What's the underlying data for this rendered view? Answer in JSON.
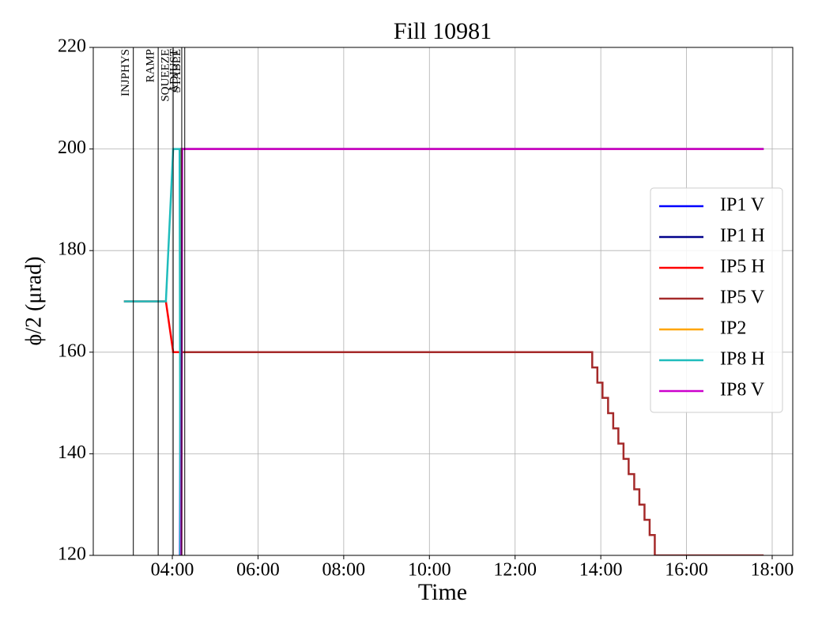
{
  "chart_data": {
    "type": "line",
    "title": "Fill 10981",
    "xlabel": "Time",
    "ylabel": "ϕ/2 (μrad)",
    "xlim": [
      2.155,
      18.48
    ],
    "xticks": [
      {
        "value": 4,
        "label": "04:00"
      },
      {
        "value": 6,
        "label": "06:00"
      },
      {
        "value": 8,
        "label": "08:00"
      },
      {
        "value": 10,
        "label": "10:00"
      },
      {
        "value": 12,
        "label": "12:00"
      },
      {
        "value": 14,
        "label": "14:00"
      },
      {
        "value": 16,
        "label": "16:00"
      },
      {
        "value": 18,
        "label": "18:00"
      }
    ],
    "ylim": [
      120,
      220
    ],
    "yticks": [
      120,
      140,
      160,
      180,
      200,
      220
    ],
    "grid": true,
    "legend": "center right",
    "annotations": [
      {
        "x": 3.09,
        "label": "INJPHYS"
      },
      {
        "x": 3.67,
        "label": "RAMP"
      },
      {
        "x": 4.02,
        "label": "SQUEEZE"
      },
      {
        "x": 4.22,
        "label": "ADJUST"
      },
      {
        "x": 4.29,
        "label": "STABLE"
      }
    ],
    "series": [
      {
        "name": "IP1 V",
        "color": "#0000ff",
        "x": [
          4.18,
          4.2,
          17.8
        ],
        "values": [
          120,
          200,
          200
        ]
      },
      {
        "name": "IP1 H",
        "color": "#00008b",
        "x": [
          4.19,
          4.21,
          17.8
        ],
        "values": [
          120,
          200,
          200
        ]
      },
      {
        "name": "IP5 H",
        "color": "#ff0000",
        "x": [
          2.87,
          3.85,
          4.02,
          4.2,
          13.8
        ],
        "values": [
          170,
          170,
          160,
          160,
          160
        ]
      },
      {
        "name": "IP5 V",
        "color": "#a52a2a",
        "x": [
          4.2,
          4.22,
          13.8,
          13.8,
          13.92,
          13.92,
          14.04,
          14.04,
          14.17,
          14.17,
          14.29,
          14.29,
          14.41,
          14.41,
          14.53,
          14.53,
          14.65,
          14.65,
          14.78,
          14.78,
          14.9,
          14.9,
          15.02,
          15.02,
          15.14,
          15.14,
          15.26,
          15.26,
          17.8
        ],
        "values": [
          120,
          160,
          160,
          157,
          157,
          154,
          154,
          151,
          151,
          148,
          148,
          145,
          145,
          142,
          142,
          139,
          139,
          136,
          136,
          133,
          133,
          130,
          130,
          127,
          127,
          124,
          124,
          120,
          120
        ]
      },
      {
        "name": "IP2",
        "color": "#ffa500",
        "x": [
          4.21,
          4.22,
          17.8
        ],
        "values": [
          120,
          200,
          200
        ]
      },
      {
        "name": "IP8 H",
        "color": "#1fbcbc",
        "x": [
          2.87,
          3.85,
          4.02,
          4.17,
          4.19
        ],
        "values": [
          170,
          170,
          200,
          200,
          120
        ]
      },
      {
        "name": "IP8 V",
        "color": "#cc00cc",
        "x": [
          4.21,
          4.23,
          17.8
        ],
        "values": [
          120,
          200,
          200
        ]
      }
    ]
  }
}
